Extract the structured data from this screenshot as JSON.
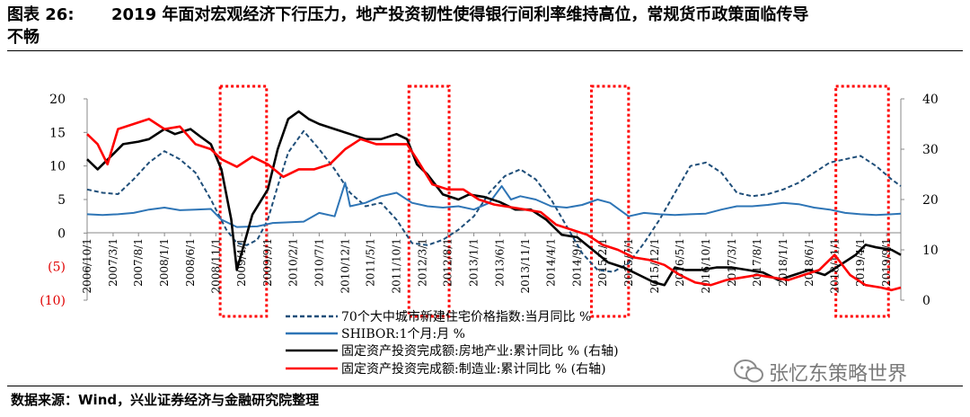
{
  "figure": {
    "label": "图表 26:",
    "title_line1": "2019 年面对宏观经济下行压力，地产投资韧性使得银行间利率维持高位，常规货币政策面临传导",
    "title_line2": "不畅",
    "source": "数据来源：Wind，兴业证券经济与金融研究院整理",
    "watermark": "张忆东策略世界",
    "watermark_icon": "wechat-icon"
  },
  "chart_data": {
    "type": "line",
    "title": "",
    "xlabel": "",
    "ylabel": "",
    "xlim": [
      2006.75,
      2019.9
    ],
    "ylim_left": [
      -10,
      20
    ],
    "ylim_right": [
      0,
      40
    ],
    "left_ticks": [
      {
        "value": 20,
        "label": "20"
      },
      {
        "value": 15,
        "label": "15"
      },
      {
        "value": 10,
        "label": "10"
      },
      {
        "value": 5,
        "label": "5"
      },
      {
        "value": 0,
        "label": "0"
      },
      {
        "value": -5,
        "label": "(5)"
      },
      {
        "value": -10,
        "label": "(10)"
      }
    ],
    "right_ticks": [
      {
        "value": 40,
        "label": "40"
      },
      {
        "value": 30,
        "label": "30"
      },
      {
        "value": 20,
        "label": "20"
      },
      {
        "value": 10,
        "label": "10"
      },
      {
        "value": 0,
        "label": "0"
      }
    ],
    "x_ticks": [
      {
        "t": 2006.75,
        "label": "2006/10/1"
      },
      {
        "t": 2007.17,
        "label": "2007/3/1"
      },
      {
        "t": 2007.58,
        "label": "2007/8/1"
      },
      {
        "t": 2008.0,
        "label": "2008/1/1"
      },
      {
        "t": 2008.42,
        "label": "2008/6/1"
      },
      {
        "t": 2008.83,
        "label": "2008/11/1"
      },
      {
        "t": 2009.25,
        "label": "2009/4/1"
      },
      {
        "t": 2009.67,
        "label": "2009/9/1"
      },
      {
        "t": 2010.08,
        "label": "2010/2/1"
      },
      {
        "t": 2010.5,
        "label": "2010/7/1"
      },
      {
        "t": 2010.92,
        "label": "2010/12/1"
      },
      {
        "t": 2011.33,
        "label": "2011/5/1"
      },
      {
        "t": 2011.75,
        "label": "2011/10/1"
      },
      {
        "t": 2012.17,
        "label": "2012/3/1"
      },
      {
        "t": 2012.58,
        "label": "2012/8/1"
      },
      {
        "t": 2013.0,
        "label": "2013/1/1"
      },
      {
        "t": 2013.42,
        "label": "2013/6/1"
      },
      {
        "t": 2013.83,
        "label": "2013/11/1"
      },
      {
        "t": 2014.25,
        "label": "2014/4/1"
      },
      {
        "t": 2014.67,
        "label": "2014/9/1"
      },
      {
        "t": 2015.08,
        "label": "2015/2/1"
      },
      {
        "t": 2015.5,
        "label": "2015/7/1"
      },
      {
        "t": 2015.92,
        "label": "2015/12/1"
      },
      {
        "t": 2016.33,
        "label": "2016/5/1"
      },
      {
        "t": 2016.75,
        "label": "2016/10/1"
      },
      {
        "t": 2017.17,
        "label": "2017/3/1"
      },
      {
        "t": 2017.58,
        "label": "2017/8/1"
      },
      {
        "t": 2018.0,
        "label": "2018/1/1"
      },
      {
        "t": 2018.42,
        "label": "2018/6/1"
      },
      {
        "t": 2018.83,
        "label": "2018/11/1"
      },
      {
        "t": 2019.25,
        "label": "2019/4/1"
      },
      {
        "t": 2019.67,
        "label": "2019/9/1"
      }
    ],
    "highlight_periods": [
      [
        2008.9,
        2009.65
      ],
      [
        2011.95,
        2012.6
      ],
      [
        2014.9,
        2015.5
      ],
      [
        2018.85,
        2019.7
      ]
    ],
    "legend_position": "bottom",
    "colors": {
      "house_price": "#1f4e79",
      "shibor": "#2e75b6",
      "real_estate": "#000000",
      "manufacturing": "#ff0000",
      "highlight": "#ff0000"
    },
    "series": [
      {
        "name": "70个大中城市新建住宅价格指数:当月同比 %",
        "axis": "left",
        "style": "dashed",
        "x": [
          2006.75,
          2007.0,
          2007.25,
          2007.5,
          2007.75,
          2008.0,
          2008.25,
          2008.5,
          2008.75,
          2009.0,
          2009.17,
          2009.33,
          2009.5,
          2009.67,
          2009.83,
          2010.0,
          2010.25,
          2010.5,
          2010.75,
          2011.0,
          2011.25,
          2011.5,
          2011.75,
          2012.0,
          2012.25,
          2012.5,
          2012.75,
          2013.0,
          2013.25,
          2013.5,
          2013.75,
          2014.0,
          2014.25,
          2014.5,
          2014.75,
          2015.0,
          2015.25,
          2015.5,
          2015.75,
          2016.0,
          2016.25,
          2016.5,
          2016.75,
          2017.0,
          2017.25,
          2017.5,
          2017.75,
          2018.0,
          2018.25,
          2018.5,
          2018.75,
          2019.0,
          2019.25,
          2019.5,
          2019.75,
          2019.9
        ],
        "values": [
          6.5,
          6.0,
          5.8,
          8.0,
          10.5,
          12.2,
          11.0,
          9.0,
          5.0,
          0.5,
          -1.5,
          -1.8,
          -1.0,
          2.0,
          7.0,
          12.0,
          15.2,
          12.5,
          9.5,
          6.0,
          4.0,
          4.5,
          2.0,
          -1.5,
          -1.8,
          -1.0,
          0.5,
          2.5,
          6.0,
          8.5,
          9.5,
          8.0,
          5.0,
          1.0,
          -3.0,
          -5.5,
          -5.8,
          -4.5,
          -1.5,
          2.0,
          6.0,
          10.0,
          10.5,
          9.0,
          6.0,
          5.5,
          5.8,
          6.5,
          7.5,
          9.0,
          10.5,
          11.0,
          11.5,
          10.0,
          8.0,
          7.0
        ]
      },
      {
        "name": "SHIBOR:1个月:月 %",
        "axis": "left",
        "style": "solid",
        "x": [
          2006.75,
          2007.0,
          2007.25,
          2007.5,
          2007.75,
          2008.0,
          2008.25,
          2008.5,
          2008.75,
          2008.92,
          2009.17,
          2009.5,
          2009.75,
          2010.0,
          2010.25,
          2010.5,
          2010.75,
          2010.92,
          2011.0,
          2011.25,
          2011.5,
          2011.75,
          2012.0,
          2012.25,
          2012.5,
          2012.75,
          2013.0,
          2013.25,
          2013.45,
          2013.6,
          2013.75,
          2014.0,
          2014.25,
          2014.5,
          2014.75,
          2015.0,
          2015.2,
          2015.5,
          2015.75,
          2016.0,
          2016.25,
          2016.5,
          2016.75,
          2017.0,
          2017.25,
          2017.5,
          2017.75,
          2018.0,
          2018.25,
          2018.5,
          2018.75,
          2019.0,
          2019.25,
          2019.5,
          2019.75,
          2019.9
        ],
        "values": [
          2.8,
          2.7,
          2.8,
          3.0,
          3.5,
          3.8,
          3.4,
          3.5,
          3.6,
          2.0,
          0.9,
          1.0,
          1.5,
          1.6,
          1.7,
          3.0,
          2.5,
          7.5,
          4.0,
          4.5,
          5.5,
          6.0,
          4.5,
          4.0,
          3.8,
          4.0,
          3.5,
          4.5,
          7.0,
          5.0,
          5.5,
          5.0,
          4.0,
          3.8,
          4.2,
          5.0,
          4.5,
          2.5,
          3.0,
          2.8,
          2.7,
          2.8,
          2.9,
          3.5,
          4.0,
          4.0,
          4.2,
          4.5,
          4.3,
          3.8,
          3.5,
          3.0,
          2.8,
          2.7,
          2.8,
          2.9
        ]
      },
      {
        "name": "固定资产投资完成额:房地产业:累计同比 % (右轴)",
        "axis": "right",
        "style": "solid",
        "x": [
          2006.75,
          2006.92,
          2007.17,
          2007.33,
          2007.58,
          2007.75,
          2008.0,
          2008.17,
          2008.42,
          2008.58,
          2008.75,
          2008.92,
          2009.08,
          2009.17,
          2009.42,
          2009.67,
          2009.83,
          2010.0,
          2010.17,
          2010.33,
          2010.5,
          2010.75,
          2011.0,
          2011.25,
          2011.5,
          2011.75,
          2011.92,
          2012.08,
          2012.25,
          2012.5,
          2012.75,
          2012.92,
          2013.17,
          2013.42,
          2013.67,
          2013.92,
          2014.17,
          2014.42,
          2014.67,
          2014.92,
          2015.17,
          2015.42,
          2015.67,
          2015.92,
          2016.08,
          2016.25,
          2016.42,
          2016.67,
          2016.92,
          2017.17,
          2017.42,
          2017.67,
          2017.92,
          2018.17,
          2018.42,
          2018.67,
          2018.92,
          2019.17,
          2019.33,
          2019.5,
          2019.75,
          2019.9
        ],
        "values": [
          28.0,
          26.0,
          29.0,
          31.0,
          31.5,
          32.0,
          34.0,
          33.0,
          34.0,
          32.5,
          31.0,
          26.0,
          16.0,
          6.0,
          17.0,
          22.0,
          30.0,
          36.0,
          37.5,
          36.0,
          35.0,
          34.0,
          33.0,
          32.0,
          32.0,
          33.0,
          32.0,
          27.0,
          25.0,
          21.0,
          20.0,
          21.0,
          20.5,
          19.5,
          18.0,
          18.0,
          16.0,
          13.0,
          12.5,
          10.0,
          7.5,
          6.5,
          5.0,
          3.5,
          3.0,
          6.5,
          6.0,
          6.0,
          6.5,
          6.5,
          6.0,
          5.5,
          4.0,
          5.0,
          6.0,
          5.0,
          7.0,
          9.0,
          11.0,
          10.5,
          10.0,
          9.0
        ]
      },
      {
        "name": "固定资产投资完成额:制造业:累计同比 % (右轴)",
        "axis": "right",
        "style": "solid",
        "x": [
          2006.75,
          2006.92,
          2007.08,
          2007.25,
          2007.5,
          2007.75,
          2008.0,
          2008.25,
          2008.5,
          2008.75,
          2008.92,
          2009.17,
          2009.42,
          2009.67,
          2009.92,
          2010.17,
          2010.42,
          2010.67,
          2010.92,
          2011.17,
          2011.42,
          2011.67,
          2011.92,
          2012.08,
          2012.33,
          2012.58,
          2012.83,
          2013.08,
          2013.33,
          2013.58,
          2013.83,
          2014.08,
          2014.33,
          2014.58,
          2014.83,
          2015.08,
          2015.33,
          2015.58,
          2015.83,
          2016.08,
          2016.33,
          2016.58,
          2016.83,
          2017.08,
          2017.33,
          2017.58,
          2017.83,
          2018.08,
          2018.33,
          2018.58,
          2018.83,
          2019.08,
          2019.33,
          2019.58,
          2019.75,
          2019.9
        ],
        "values": [
          33.0,
          31.0,
          27.0,
          34.0,
          35.0,
          36.0,
          34.0,
          34.5,
          31.0,
          30.0,
          28.0,
          26.5,
          28.5,
          27.0,
          24.5,
          26.0,
          26.0,
          27.0,
          30.0,
          32.0,
          31.0,
          31.0,
          31.0,
          28.0,
          23.0,
          22.0,
          22.0,
          20.0,
          19.0,
          18.5,
          18.0,
          17.5,
          15.0,
          14.0,
          13.0,
          11.0,
          10.0,
          8.5,
          8.0,
          7.0,
          5.0,
          3.5,
          3.0,
          4.0,
          4.5,
          5.0,
          4.5,
          4.0,
          5.0,
          6.0,
          9.0,
          5.0,
          3.0,
          2.5,
          2.0,
          2.5
        ]
      }
    ]
  }
}
